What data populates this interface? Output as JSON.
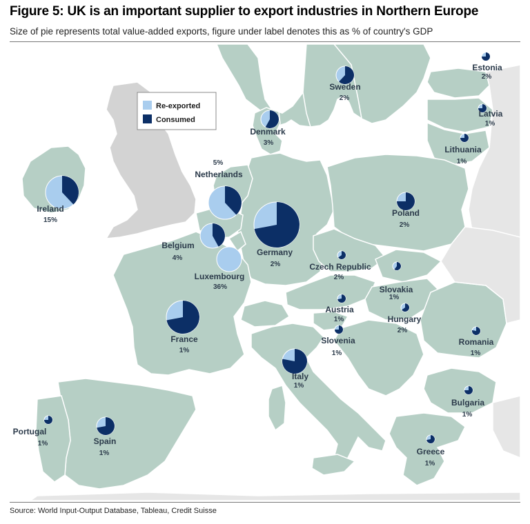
{
  "title": "Figure 5: UK is an important supplier to export industries in Northern Europe",
  "subtitle": "Size of pie represents total value-added exports, figure under label denotes this as % of country's GDP",
  "source": "Source: World Input-Output Database, Tableau, Credit Suisse",
  "colors": {
    "reexported": "#a9cdee",
    "consumed": "#0c2f66",
    "land": "#b6cfc5",
    "uk": "#cfcfcf",
    "sea": "#ffffff",
    "border": "#ffffff"
  },
  "legend": {
    "reexported": "Re-exported",
    "consumed": "Consumed"
  },
  "countries": [
    {
      "name": "Ireland",
      "pct": "15%",
      "consumed_share": 0.38,
      "size": "large"
    },
    {
      "name": "Netherlands",
      "pct": "5%",
      "consumed_share": 0.38,
      "size": "large"
    },
    {
      "name": "Germany",
      "pct": "2%",
      "consumed_share": 0.72,
      "size": "xlarge"
    },
    {
      "name": "Belgium",
      "pct": "4%",
      "consumed_share": 0.42,
      "size": "medium"
    },
    {
      "name": "Luxembourg",
      "pct": "36%",
      "consumed_share": 0.0,
      "size": "medium"
    },
    {
      "name": "France",
      "pct": "1%",
      "consumed_share": 0.72,
      "size": "large"
    },
    {
      "name": "Denmark",
      "pct": "3%",
      "consumed_share": 0.58,
      "size": "small"
    },
    {
      "name": "Sweden",
      "pct": "2%",
      "consumed_share": 0.62,
      "size": "small"
    },
    {
      "name": "Estonia",
      "pct": "2%",
      "consumed_share": 0.75,
      "size": "tiny"
    },
    {
      "name": "Latvia",
      "pct": "1%",
      "consumed_share": 0.75,
      "size": "tiny"
    },
    {
      "name": "Lithuania",
      "pct": "1%",
      "consumed_share": 0.75,
      "size": "tiny"
    },
    {
      "name": "Poland",
      "pct": "2%",
      "consumed_share": 0.75,
      "size": "small"
    },
    {
      "name": "Czech Republic",
      "pct": "2%",
      "consumed_share": 0.65,
      "size": "tiny"
    },
    {
      "name": "Slovakia",
      "pct": "1%",
      "consumed_share": 0.6,
      "size": "tiny"
    },
    {
      "name": "Austria",
      "pct": "1%",
      "consumed_share": 0.72,
      "size": "tiny"
    },
    {
      "name": "Hungary",
      "pct": "2%",
      "consumed_share": 0.65,
      "size": "tiny"
    },
    {
      "name": "Slovenia",
      "pct": "1%",
      "consumed_share": 0.75,
      "size": "tiny"
    },
    {
      "name": "Italy",
      "pct": "1%",
      "consumed_share": 0.78,
      "size": "medium"
    },
    {
      "name": "Romania",
      "pct": "1%",
      "consumed_share": 0.78,
      "size": "tiny"
    },
    {
      "name": "Bulgaria",
      "pct": "1%",
      "consumed_share": 0.75,
      "size": "tiny"
    },
    {
      "name": "Greece",
      "pct": "1%",
      "consumed_share": 0.72,
      "size": "tiny"
    },
    {
      "name": "Portugal",
      "pct": "1%",
      "consumed_share": 0.75,
      "size": "tiny"
    },
    {
      "name": "Spain",
      "pct": "1%",
      "consumed_share": 0.72,
      "size": "small"
    }
  ]
}
